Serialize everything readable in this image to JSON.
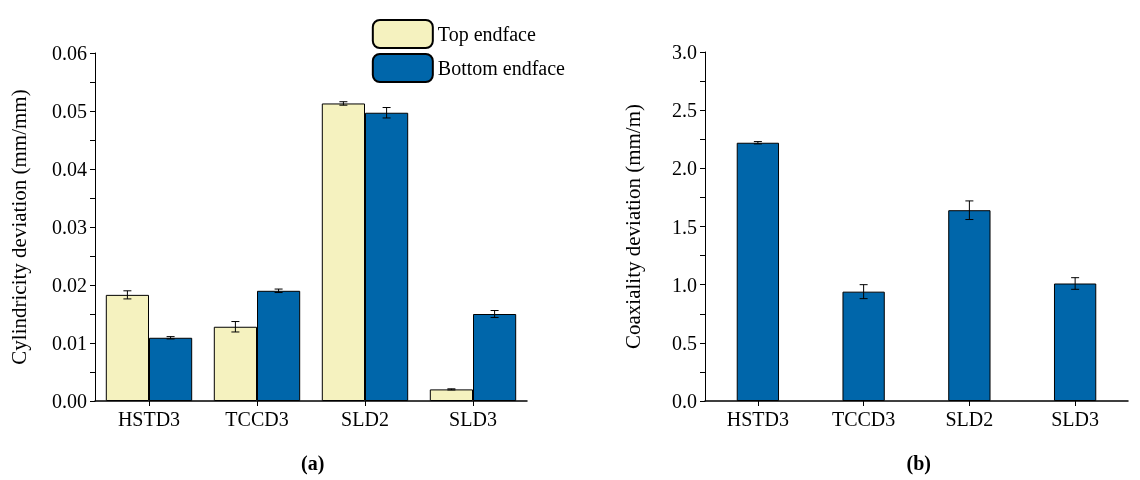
{
  "chart_data": [
    {
      "type": "bar",
      "ylabel": "Cylindricity deviation (mm/mm)",
      "categories": [
        "HSTD3",
        "TCCD3",
        "SLD2",
        "SLD3"
      ],
      "ylim": [
        0,
        0.06
      ],
      "yticks": [
        {
          "value": 0,
          "label": "0.00"
        },
        {
          "value": 0.01,
          "label": "0.01"
        },
        {
          "value": 0.02,
          "label": "0.02"
        },
        {
          "value": 0.03,
          "label": "0.03"
        },
        {
          "value": 0.04,
          "label": "0.04"
        },
        {
          "value": 0.05,
          "label": "0.05"
        },
        {
          "value": 0.06,
          "label": "0.06"
        }
      ],
      "grid": false,
      "legend": "top right",
      "annotations": [
        "(a)"
      ],
      "series": [
        {
          "name": "Top endface",
          "color": "#f5f2bf",
          "values": [
            0.0183,
            0.0128,
            0.0513,
            0.002
          ],
          "errors": [
            0.0007,
            0.0009,
            0.0003,
            0.0001
          ]
        },
        {
          "name": "Bottom endface",
          "color": "#0066aa",
          "values": [
            0.0109,
            0.019,
            0.0497,
            0.015
          ],
          "errors": [
            0.0002,
            0.0003,
            0.0009,
            0.0006
          ]
        }
      ]
    },
    {
      "type": "bar",
      "ylabel": "Coaxiality deviation (mm/m)",
      "categories": [
        "HSTD3",
        "TCCD3",
        "SLD2",
        "SLD3"
      ],
      "ylim": [
        0,
        3.0
      ],
      "yticks": [
        {
          "value": 0,
          "label": "0.0"
        },
        {
          "value": 0.5,
          "label": "0.5"
        },
        {
          "value": 1,
          "label": "1.0"
        },
        {
          "value": 1.5,
          "label": "1.5"
        },
        {
          "value": 2,
          "label": "2.0"
        },
        {
          "value": 2.5,
          "label": "2.5"
        },
        {
          "value": 3,
          "label": "3.0"
        }
      ],
      "grid": false,
      "legend": false,
      "annotations": [
        "(b)"
      ],
      "series": [
        {
          "color": "#0066aa",
          "values": [
            2.22,
            0.94,
            1.64,
            1.01
          ],
          "errors": [
            0.01,
            0.06,
            0.08,
            0.05
          ]
        }
      ]
    }
  ]
}
